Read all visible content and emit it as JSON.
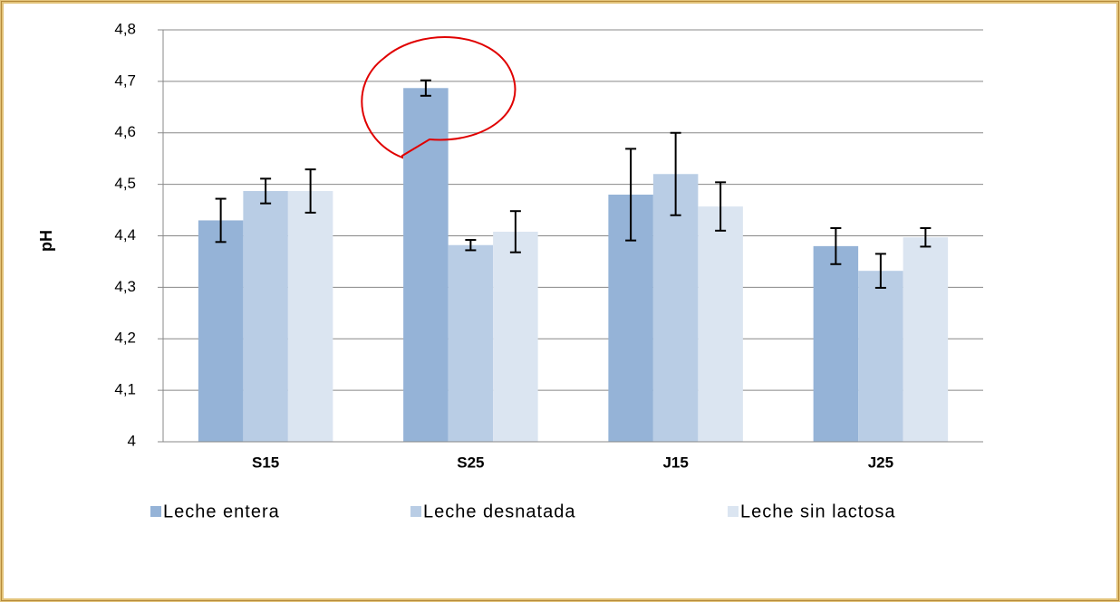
{
  "chart_data": {
    "type": "bar",
    "y_label": "pH",
    "categories": [
      "S15",
      "S25",
      "J15",
      "J25"
    ],
    "series": [
      {
        "name": "Leche entera",
        "color": "#95b3d7",
        "values": [
          4.43,
          4.687,
          4.48,
          4.38
        ],
        "errors": [
          0.042,
          0.015,
          0.089,
          0.035
        ]
      },
      {
        "name": "Leche desnatada",
        "color": "#b9cde5",
        "values": [
          4.487,
          4.382,
          4.52,
          4.332
        ],
        "errors": [
          0.024,
          0.01,
          0.08,
          0.033
        ]
      },
      {
        "name": "Leche sin lactosa",
        "color": "#dbe5f1",
        "values": [
          4.487,
          4.408,
          4.457,
          4.397
        ],
        "errors": [
          0.042,
          0.04,
          0.047,
          0.018
        ]
      }
    ],
    "ylim": [
      4,
      4.8
    ],
    "yticks": [
      4,
      {
        "value": 4.1,
        "label": "4,1"
      },
      {
        "value": 4.2,
        "label": "4,2"
      },
      {
        "value": 4.3,
        "label": "4,3"
      },
      {
        "value": 4.4,
        "label": "4,4"
      },
      {
        "value": 4.5,
        "label": "4,5"
      },
      {
        "value": 4.6,
        "label": "4,6"
      },
      {
        "value": 4.7,
        "label": "4,7"
      },
      {
        "value": 4.8,
        "label": "4,8"
      }
    ],
    "grid": true
  }
}
